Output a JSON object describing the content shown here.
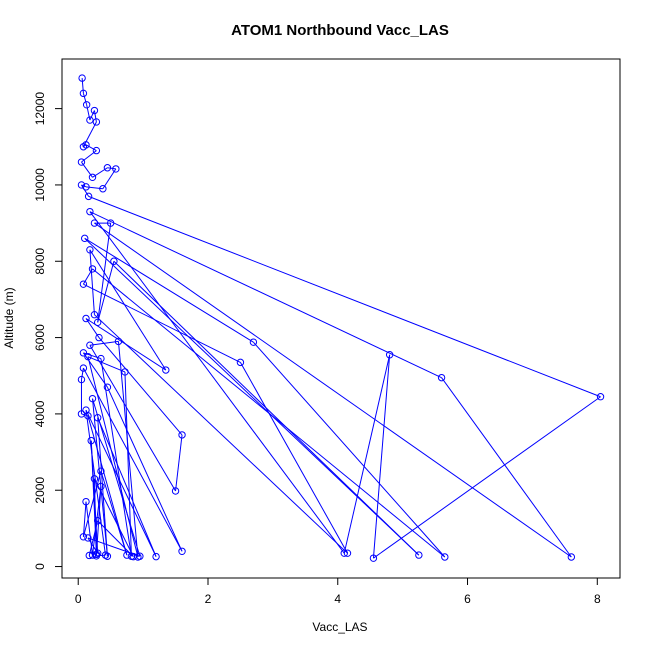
{
  "chart_data": {
    "type": "line",
    "title": "ATOM1 Northbound Vacc_LAS",
    "xlabel": "Vacc_LAS",
    "ylabel": "Altitude (m)",
    "xlim": [
      -0.25,
      8.35
    ],
    "ylim": [
      -300,
      13300
    ],
    "x_ticks": [
      0,
      2,
      4,
      6,
      8
    ],
    "y_ticks": [
      0,
      2000,
      4000,
      6000,
      8000,
      10000,
      12000
    ],
    "series_color": "#0000ff",
    "marker": "open-circle",
    "series": [
      {
        "values": [
          [
            0.06,
            12800
          ],
          [
            0.08,
            12400
          ],
          [
            0.13,
            12100
          ],
          [
            0.18,
            11700
          ],
          [
            0.25,
            11950
          ],
          [
            0.28,
            11650
          ],
          [
            0.08,
            11000
          ],
          [
            0.12,
            11050
          ],
          [
            0.28,
            10900
          ],
          [
            0.05,
            10600
          ],
          [
            0.22,
            10200
          ],
          [
            0.45,
            10450
          ],
          [
            0.58,
            10420
          ],
          [
            0.38,
            9900
          ],
          [
            0.12,
            9950
          ],
          [
            0.05,
            10000
          ],
          [
            0.16,
            9700
          ],
          [
            8.05,
            4450
          ],
          [
            4.55,
            220
          ],
          [
            4.8,
            5550
          ],
          [
            4.1,
            350
          ],
          [
            0.18,
            9300
          ],
          [
            5.6,
            4950
          ],
          [
            7.6,
            250
          ],
          [
            0.25,
            9000
          ],
          [
            0.5,
            9000
          ],
          [
            0.3,
            6400
          ],
          [
            0.55,
            8000
          ],
          [
            5.25,
            300
          ],
          [
            0.1,
            8600
          ],
          [
            2.7,
            5880
          ],
          [
            5.65,
            250
          ],
          [
            0.22,
            7800
          ],
          [
            0.08,
            7400
          ],
          [
            2.5,
            5350
          ],
          [
            4.15,
            350
          ],
          [
            0.25,
            6600
          ],
          [
            0.18,
            8300
          ],
          [
            1.35,
            5150
          ],
          [
            0.12,
            6500
          ],
          [
            0.32,
            6000
          ],
          [
            1.6,
            3450
          ],
          [
            1.5,
            1980
          ],
          [
            0.18,
            5800
          ],
          [
            0.62,
            5900
          ],
          [
            0.92,
            250
          ],
          [
            0.15,
            5500
          ],
          [
            0.72,
            5100
          ],
          [
            0.82,
            270
          ],
          [
            0.35,
            5450
          ],
          [
            0.08,
            5600
          ],
          [
            0.45,
            4700
          ],
          [
            1.6,
            400
          ],
          [
            0.08,
            5200
          ],
          [
            0.05,
            4900
          ],
          [
            0.05,
            4000
          ],
          [
            0.15,
            3950
          ],
          [
            0.75,
            300
          ],
          [
            0.35,
            2500
          ],
          [
            0.08,
            780
          ],
          [
            0.12,
            1700
          ],
          [
            0.22,
            300
          ],
          [
            0.35,
            2100
          ],
          [
            0.28,
            280
          ],
          [
            0.42,
            300
          ],
          [
            0.12,
            4100
          ],
          [
            1.2,
            260
          ],
          [
            0.3,
            3900
          ],
          [
            0.45,
            270
          ],
          [
            0.22,
            4400
          ],
          [
            0.95,
            270
          ],
          [
            0.15,
            750
          ],
          [
            0.3,
            350
          ],
          [
            0.2,
            3300
          ],
          [
            0.28,
            320
          ],
          [
            0.25,
            2300
          ],
          [
            0.85,
            260
          ],
          [
            0.3,
            1200
          ],
          [
            0.17,
            290
          ]
        ]
      }
    ]
  }
}
